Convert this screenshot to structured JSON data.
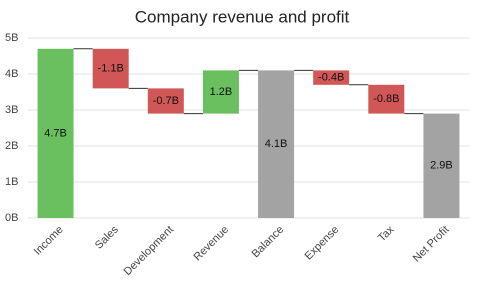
{
  "chart_data": {
    "type": "waterfall",
    "title": "Company revenue and profit",
    "categories": [
      "Income",
      "Sales",
      "Development",
      "Revenue",
      "Balance",
      "Expense",
      "Tax",
      "Net Profit"
    ],
    "values": [
      4.7,
      -1.1,
      -0.7,
      1.2,
      4.1,
      -0.4,
      -0.8,
      2.9
    ],
    "value_labels": [
      "4.7B",
      "-1.1B",
      "-0.7B",
      "1.2B",
      "4.1B",
      "-0.4B",
      "-0.8B",
      "2.9B"
    ],
    "totals": [
      4,
      7
    ],
    "increase_color": "#6abf5e",
    "decrease_color": "#d15757",
    "total_color": "#a3a3a3",
    "ylim": [
      0,
      5
    ],
    "yticks": [
      {
        "value": 0,
        "label": "0B"
      },
      {
        "value": 1,
        "label": "1B"
      },
      {
        "value": 2,
        "label": "2B"
      },
      {
        "value": 3,
        "label": "3B"
      },
      {
        "value": 4,
        "label": "4B"
      },
      {
        "value": 5,
        "label": "5B"
      }
    ],
    "grid": true
  }
}
